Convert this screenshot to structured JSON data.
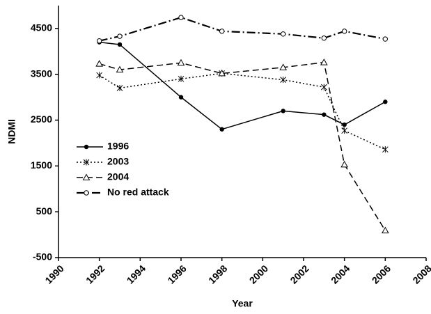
{
  "chart_data": {
    "type": "line",
    "x_label": "Year",
    "y_label": "NDMI",
    "x": [
      1992,
      1993,
      1996,
      1998,
      2001,
      2003,
      2004,
      2006
    ],
    "series": [
      {
        "name": "1996",
        "color": "#000000",
        "dash": "solid",
        "marker": "filled-circle",
        "values": [
          4200,
          4150,
          3000,
          2300,
          2700,
          2620,
          2400,
          2900
        ]
      },
      {
        "name": "2003",
        "color": "#000000",
        "dash": "dotted",
        "marker": "asterisk",
        "values": [
          3480,
          3200,
          3400,
          3520,
          3380,
          3220,
          2270,
          1860
        ]
      },
      {
        "name": "2004",
        "color": "#000000",
        "dash": "dashed",
        "marker": "open-triangle",
        "values": [
          3730,
          3600,
          3750,
          3520,
          3650,
          3760,
          1530,
          90
        ]
      },
      {
        "name": "No red attack",
        "color": "#000000",
        "dash": "dash-dot",
        "marker": "open-circle",
        "values": [
          4230,
          4330,
          4740,
          4440,
          4380,
          4290,
          4440,
          4270
        ]
      }
    ],
    "xlim": [
      1990,
      2008
    ],
    "xticks": [
      1990,
      1992,
      1994,
      1996,
      1998,
      2000,
      2002,
      2004,
      2006,
      2008
    ],
    "ylim": [
      -500,
      5000
    ],
    "yticks": [
      -500,
      500,
      1500,
      2500,
      3500,
      4500
    ],
    "legend": "left",
    "grid": false
  }
}
